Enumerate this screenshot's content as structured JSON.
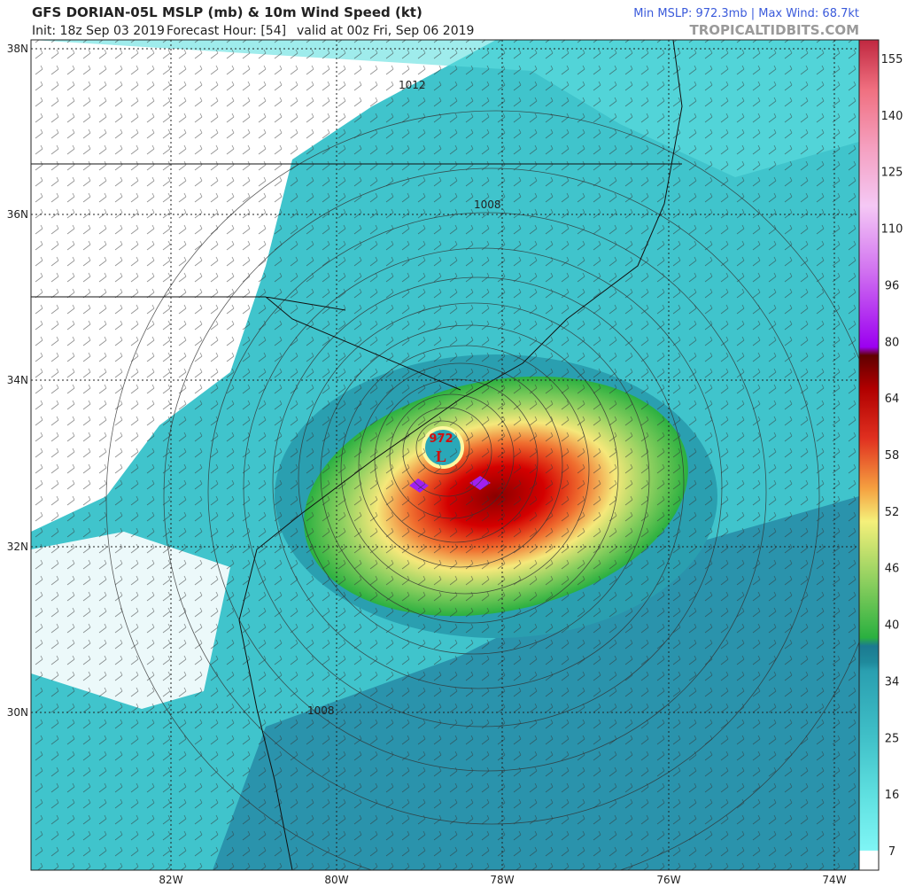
{
  "header": {
    "title": "GFS DORIAN-05L MSLP (mb) & 10m Wind Speed (kt)",
    "init": "Init: 18z Sep 03 2019",
    "forecast_hour": "Forecast Hour: [54]",
    "valid": "valid at 00z Fri, Sep 06 2019",
    "stats": "Min MSLP: 972.3mb | Max Wind: 68.7kt",
    "site": "TROPICALTIDBITS.COM"
  },
  "map": {
    "lat_labels": [
      "38N",
      "36N",
      "34N",
      "32N",
      "30N"
    ],
    "lon_labels": [
      "82W",
      "80W",
      "78W",
      "76W",
      "74W"
    ],
    "low_pressure": "972",
    "low_marker": "L",
    "contour_labels": [
      "1012",
      "1008",
      "1008"
    ]
  },
  "colorbar": {
    "ticks": [
      "155",
      "140",
      "125",
      "110",
      "96",
      "80",
      "64",
      "58",
      "52",
      "46",
      "40",
      "34",
      "25",
      "16",
      "7"
    ]
  }
}
